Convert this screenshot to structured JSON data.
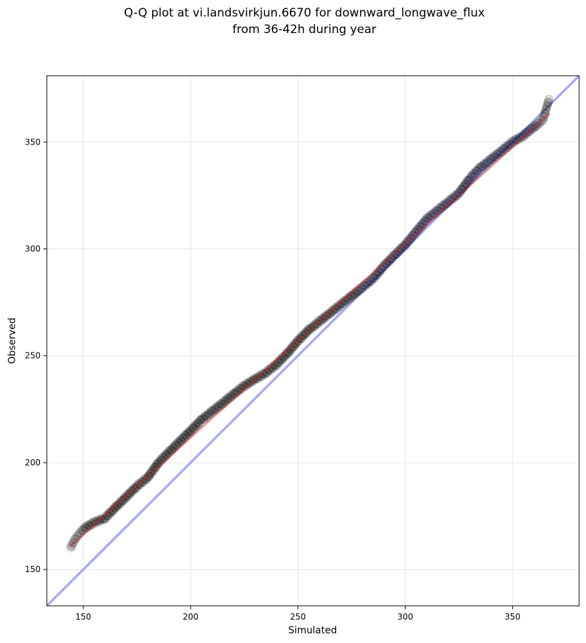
{
  "chart_data": {
    "type": "scatter",
    "title_line1": "Q-Q plot at vi.landsvirkjun.6670 for downward_longwave_flux",
    "title_line2": "from 36-42h during year",
    "xlabel": "Simulated",
    "ylabel": "Observed",
    "xlim": [
      133,
      381
    ],
    "ylim": [
      133,
      381
    ],
    "xticks": [
      150,
      200,
      250,
      300,
      350
    ],
    "yticks": [
      150,
      200,
      250,
      300,
      350
    ],
    "grid": true,
    "quantile_curve": [
      [
        144,
        160
      ],
      [
        146,
        164
      ],
      [
        150,
        169
      ],
      [
        155,
        172
      ],
      [
        160,
        174
      ],
      [
        165,
        179
      ],
      [
        170,
        184
      ],
      [
        175,
        189
      ],
      [
        180,
        193
      ],
      [
        185,
        200
      ],
      [
        190,
        205
      ],
      [
        195,
        210
      ],
      [
        200,
        215
      ],
      [
        205,
        220
      ],
      [
        210,
        224
      ],
      [
        215,
        228
      ],
      [
        220,
        232
      ],
      [
        225,
        236
      ],
      [
        230,
        239
      ],
      [
        235,
        242
      ],
      [
        240,
        246
      ],
      [
        245,
        251
      ],
      [
        250,
        257
      ],
      [
        255,
        262
      ],
      [
        260,
        266
      ],
      [
        265,
        270
      ],
      [
        270,
        274
      ],
      [
        275,
        278
      ],
      [
        280,
        282
      ],
      [
        285,
        286
      ],
      [
        290,
        292
      ],
      [
        295,
        297
      ],
      [
        300,
        302
      ],
      [
        305,
        308
      ],
      [
        310,
        314
      ],
      [
        315,
        318
      ],
      [
        320,
        322
      ],
      [
        325,
        326
      ],
      [
        330,
        333
      ],
      [
        335,
        338
      ],
      [
        340,
        342
      ],
      [
        345,
        346
      ],
      [
        350,
        350
      ],
      [
        355,
        353
      ],
      [
        360,
        357
      ],
      [
        364,
        360
      ],
      [
        367,
        370
      ]
    ],
    "identity_line": [
      [
        133,
        133
      ],
      [
        381,
        381
      ]
    ],
    "fit_line": [
      [
        144,
        161
      ],
      [
        367,
        363
      ]
    ],
    "colors": {
      "points": "#000000",
      "points_upper": "#1c1c6e",
      "identity_line": "#aaaaf5",
      "fit_line": "#cc2222"
    }
  }
}
